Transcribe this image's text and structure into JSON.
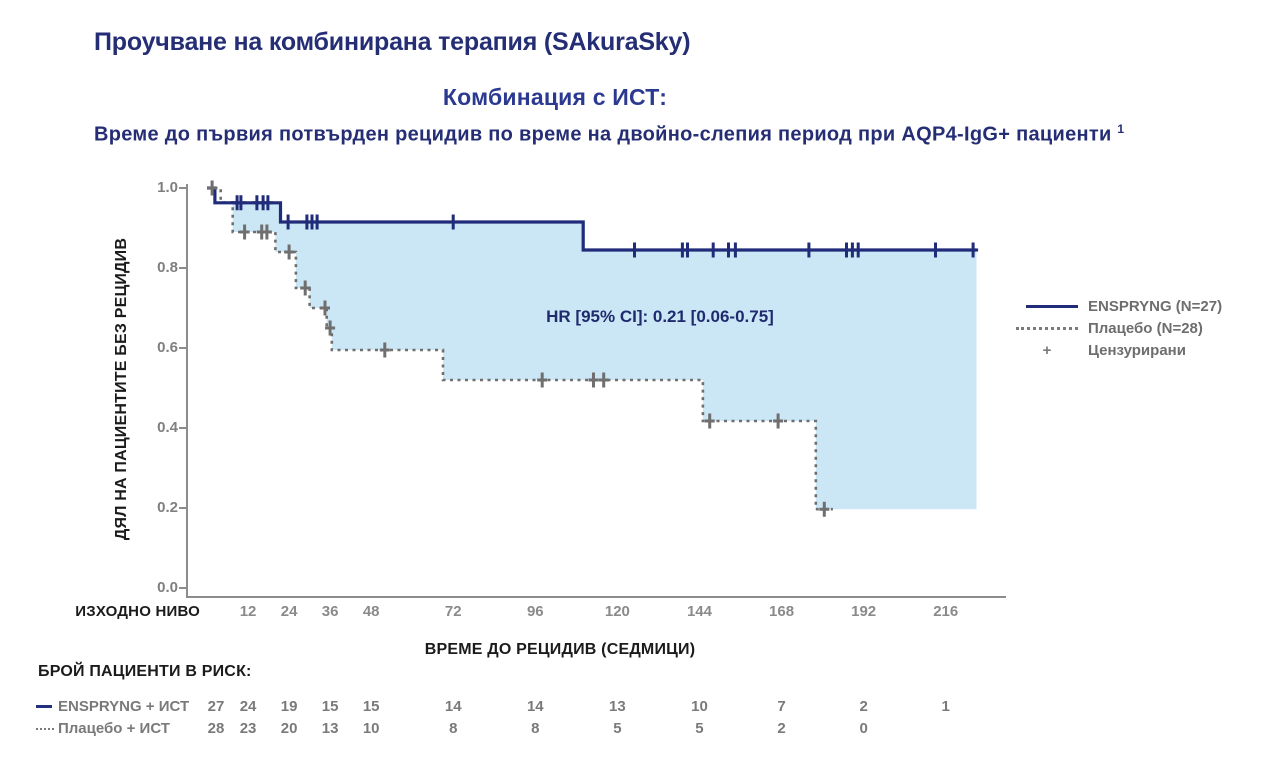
{
  "titles": {
    "main": "Проучване на комбинирана терапия (SAkuraSky)",
    "sub1": "Комбинация с ИСТ:",
    "sub2": "Време до първия потвърден рецидив по време на двойно-слепия период при AQP4-IgG+ пациенти",
    "sub2_superscript": "1"
  },
  "chart_data": {
    "type": "line",
    "subtype": "kaplan-meier-step",
    "annotation": "HR [95% CI]: 0.21 [0.06-0.75]",
    "x_axis": {
      "label": "ВРЕМЕ ДО РЕЦИДИВ (СЕДМИЦИ)",
      "baseline_label": "ИЗХОДНО НИВО",
      "ticks": [
        12,
        24,
        36,
        48,
        72,
        96,
        120,
        144,
        168,
        192,
        216
      ],
      "range_weeks": [
        0,
        228
      ]
    },
    "y_axis": {
      "label": "ДЯЛ НА ПАЦИЕНТИТЕ БЕЗ РЕЦИДИВ",
      "tick_labels": [
        "1.0",
        "0.8",
        "0.6",
        "0.4",
        "0.2",
        "0.0"
      ],
      "tick_values": [
        1.0,
        0.8,
        0.6,
        0.4,
        0.2,
        0.0
      ],
      "range": [
        0,
        1
      ]
    },
    "series": [
      {
        "name": "ENSPRYNG (N=27)",
        "style": "solid",
        "color": "#202c7a",
        "steps": [
          [
            0,
            1.0
          ],
          [
            2.3,
            0.963
          ],
          [
            21.5,
            0.915
          ],
          [
            110,
            0.845
          ]
        ],
        "end_week": 225,
        "censors": [
          [
            8.8,
            0.963
          ],
          [
            9.9,
            0.963
          ],
          [
            14.6,
            0.963
          ],
          [
            16.4,
            0.963
          ],
          [
            17.8,
            0.963
          ],
          [
            23.7,
            0.915
          ],
          [
            29.2,
            0.915
          ],
          [
            30.7,
            0.915
          ],
          [
            32.2,
            0.915
          ],
          [
            72,
            0.915
          ],
          [
            125,
            0.845
          ],
          [
            139,
            0.845
          ],
          [
            140.5,
            0.845
          ],
          [
            148,
            0.845
          ],
          [
            152.5,
            0.845
          ],
          [
            154.5,
            0.845
          ],
          [
            176,
            0.845
          ],
          [
            187,
            0.845
          ],
          [
            188.7,
            0.845
          ],
          [
            190.4,
            0.845
          ],
          [
            213,
            0.845
          ],
          [
            224,
            0.845
          ]
        ]
      },
      {
        "name": "Плацебо (N=28)",
        "style": "dotted",
        "color": "#6f6f6f",
        "steps": [
          [
            0,
            1.0
          ],
          [
            4,
            0.964
          ],
          [
            7.5,
            0.89
          ],
          [
            20,
            0.84
          ],
          [
            26,
            0.75
          ],
          [
            30,
            0.7
          ],
          [
            35,
            0.65
          ],
          [
            36.5,
            0.595
          ],
          [
            69,
            0.52
          ],
          [
            145,
            0.4175
          ],
          [
            178,
            0.197
          ]
        ],
        "end_week": 183,
        "censors": [
          [
            1.5,
            1.0
          ],
          [
            11,
            0.89
          ],
          [
            16,
            0.89
          ],
          [
            17.5,
            0.89
          ],
          [
            24,
            0.84
          ],
          [
            28.7,
            0.75
          ],
          [
            34.5,
            0.7
          ],
          [
            36,
            0.65
          ],
          [
            52,
            0.595
          ],
          [
            98,
            0.52
          ],
          [
            113,
            0.52
          ],
          [
            116,
            0.52
          ],
          [
            147,
            0.4175
          ],
          [
            167,
            0.4175
          ],
          [
            180.5,
            0.197
          ]
        ]
      }
    ],
    "fill": {
      "color": "#cbe6f4",
      "start_week": 4,
      "end_week": 225
    },
    "legend": [
      {
        "label": "ENSPRYNG (N=27)",
        "glyph": "solid-line"
      },
      {
        "label": "Плацебо (N=28)",
        "glyph": "dotted-line"
      },
      {
        "label": "Цензурирани",
        "glyph": "plus"
      }
    ]
  },
  "risk_table": {
    "header": "БРОЙ ПАЦИЕНТИ В РИСК:",
    "weeks": [
      0,
      12,
      24,
      36,
      48,
      72,
      96,
      120,
      144,
      168,
      192,
      216
    ],
    "rows": [
      {
        "label": "ENSPRYNG + ИСТ",
        "glyph": "solid",
        "values": [
          27,
          24,
          19,
          15,
          15,
          14,
          14,
          13,
          10,
          7,
          2,
          1
        ]
      },
      {
        "label": "Плацебо + ИСТ",
        "glyph": "dotted",
        "values": [
          28,
          23,
          20,
          13,
          10,
          8,
          8,
          5,
          5,
          2,
          0
        ]
      }
    ]
  }
}
